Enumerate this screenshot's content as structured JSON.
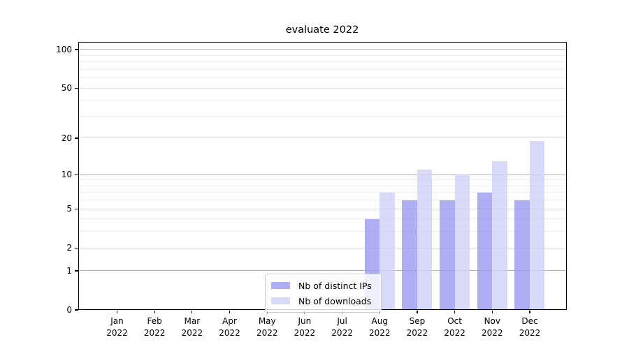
{
  "chart_data": {
    "type": "bar",
    "title": "evaluate 2022",
    "categories": [
      "Jan",
      "Feb",
      "Mar",
      "Apr",
      "May",
      "Jun",
      "Jul",
      "Aug",
      "Sep",
      "Oct",
      "Nov",
      "Dec"
    ],
    "category_year": "2022",
    "series": [
      {
        "name": "Nb of distinct IPs",
        "color": "#9a9af2",
        "values": [
          0,
          0,
          0,
          0,
          0,
          0,
          0,
          4,
          6,
          6,
          7,
          6
        ]
      },
      {
        "name": "Nb of downloads",
        "color": "#d0d0f6",
        "values": [
          0,
          0,
          0,
          0,
          0,
          0,
          0,
          7,
          11,
          10,
          13,
          19
        ]
      }
    ],
    "yscale": "log1p",
    "ylim": [
      0,
      115
    ],
    "yticks_labeled": [
      0,
      1,
      2,
      5,
      10,
      20,
      50,
      100
    ],
    "yticks_major": [
      1,
      10,
      100
    ],
    "yticks_minor": [
      3,
      4,
      6,
      7,
      8,
      9,
      30,
      40,
      60,
      70,
      80,
      90
    ],
    "grid": true,
    "legend_position": "lower center",
    "grid_color_major": "#b1b1b1",
    "grid_color_labeled": "#dcdcdc",
    "grid_color_minor": "#ececec"
  }
}
